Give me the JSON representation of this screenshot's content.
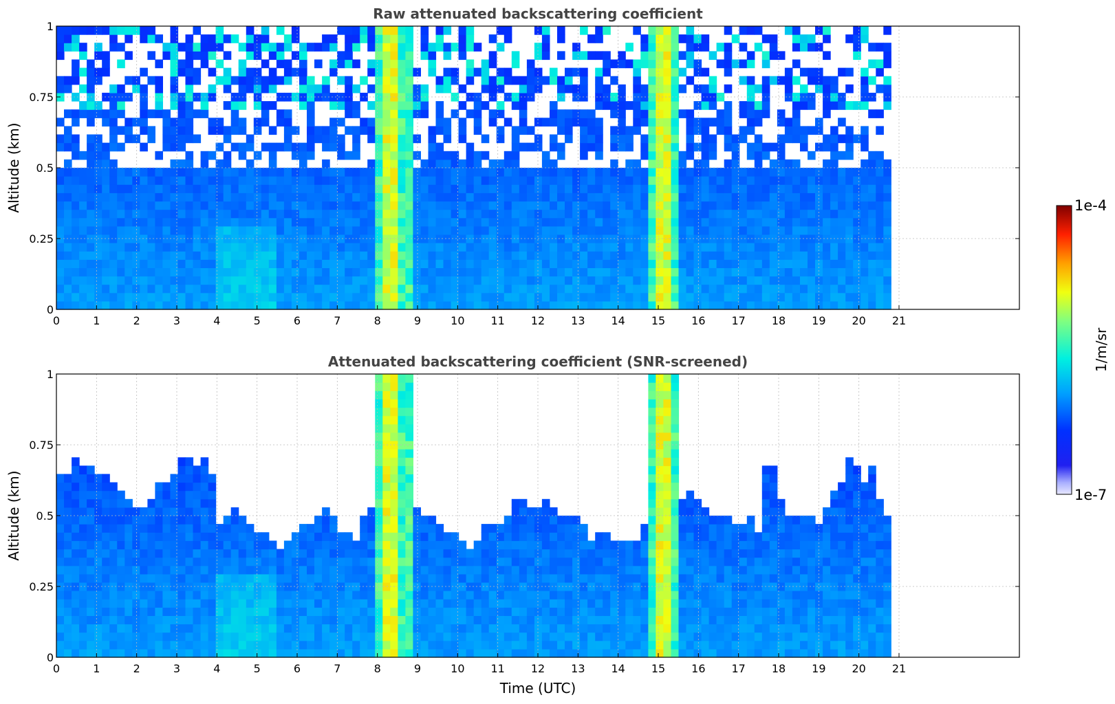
{
  "chart_data": [
    {
      "type": "heatmap",
      "title": "Raw attenuated backscattering coefficient",
      "ylabel": "Altitude (km)",
      "xlabel": "",
      "xlim": [
        0,
        24
      ],
      "ylim": [
        0,
        1
      ],
      "xticks": [
        "0",
        "1",
        "2",
        "3",
        "4",
        "5",
        "6",
        "7",
        "8",
        "9",
        "10",
        "11",
        "12",
        "13",
        "14",
        "15",
        "16",
        "17",
        "18",
        "19",
        "20",
        "21"
      ],
      "yticks": [
        "0",
        "0.25",
        "0.5",
        "0.75",
        "1"
      ],
      "grid": true,
      "data_end_time": 20.8,
      "screened": false
    },
    {
      "type": "heatmap",
      "title": "Attenuated backscattering coefficient (SNR-screened)",
      "ylabel": "Altitude (km)",
      "xlabel": "Time (UTC)",
      "xlim": [
        0,
        24
      ],
      "ylim": [
        0,
        1
      ],
      "xticks": [
        "0",
        "1",
        "2",
        "3",
        "4",
        "5",
        "6",
        "7",
        "8",
        "9",
        "10",
        "11",
        "12",
        "13",
        "14",
        "15",
        "16",
        "17",
        "18",
        "19",
        "20",
        "21"
      ],
      "yticks": [
        "0",
        "0.25",
        "0.5",
        "0.75",
        "1"
      ],
      "grid": true,
      "data_end_time": 20.8,
      "screened": true
    }
  ],
  "colorbar": {
    "label": "1/m/sr",
    "max_label": "1e-4",
    "min_label": "1e-7",
    "colormap": "jet",
    "low_color": "#e8e8ff",
    "high_color": "#800000"
  }
}
